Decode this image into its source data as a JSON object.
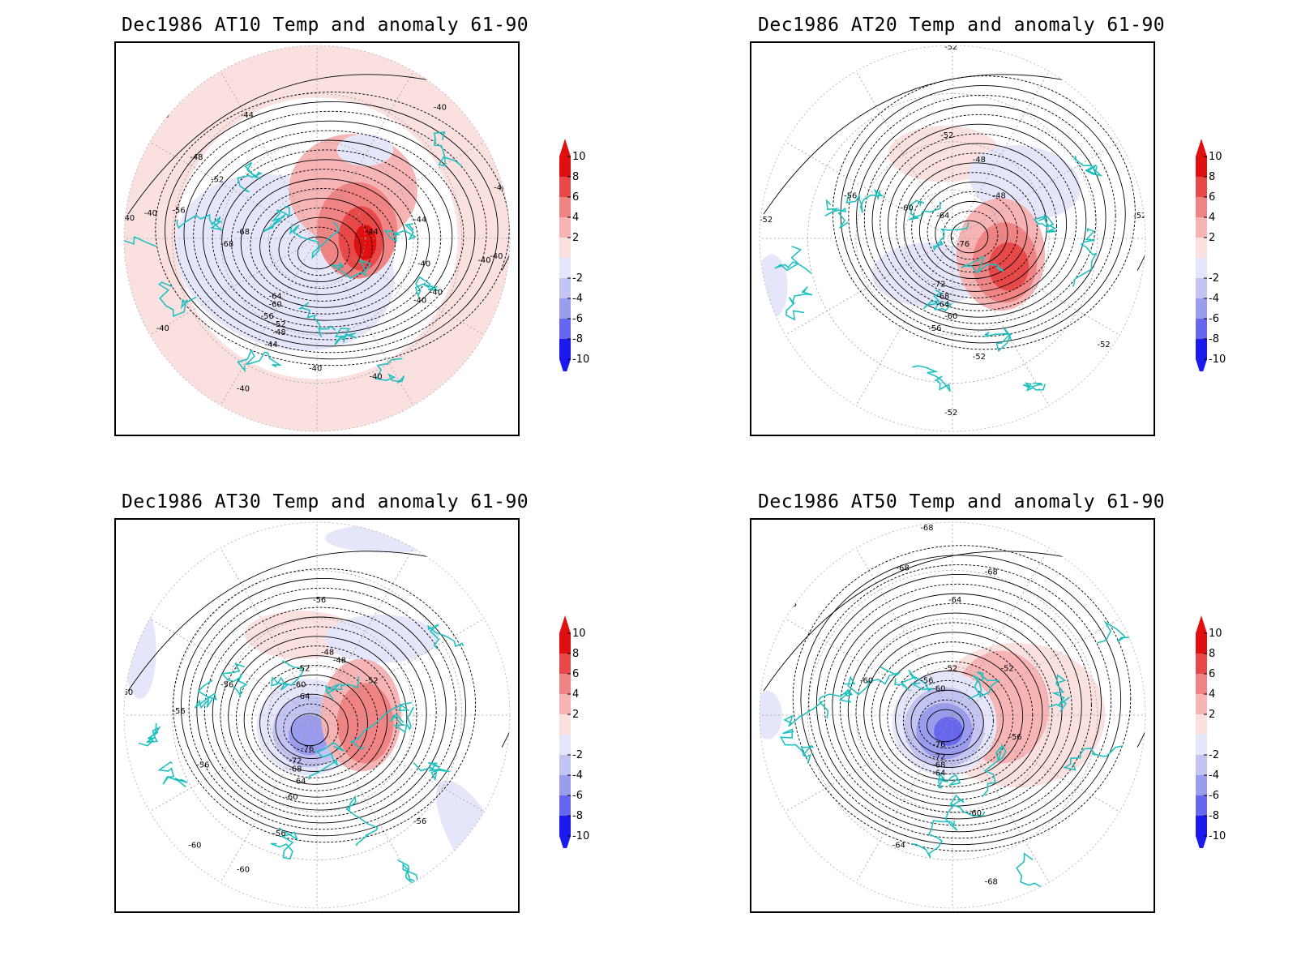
{
  "colors": {
    "coast": "#20c0c0",
    "contour": "#000000",
    "warm": [
      "#fbe0e0",
      "#f7b4b4",
      "#f08484",
      "#e84848",
      "#e01010"
    ],
    "cold": [
      "#e6e6fa",
      "#c4c4f2",
      "#9c9cee",
      "#6666ee",
      "#1a1aee"
    ]
  },
  "colorbar": {
    "levels": [
      "10",
      "8",
      "6",
      "4",
      "2",
      "-2",
      "-4",
      "-6",
      "-8",
      "-10"
    ]
  },
  "panels": [
    {
      "id": "at10",
      "title": "Dec1986 AT10 Temp and anomaly 61-90",
      "map_icon": "polar-stereographic-map",
      "contour_labels": [
        "-40",
        "-40",
        "-44",
        "-44",
        "-48",
        "-52",
        "-56",
        "-68",
        "-68",
        "-44",
        "-40",
        "-40",
        "-44",
        "-40",
        "-40",
        "-60",
        "-64",
        "-56",
        "-52",
        "-48",
        "-44",
        "-40",
        "-40",
        "-40",
        "-40",
        "-40",
        "-40",
        "-40"
      ]
    },
    {
      "id": "at20",
      "title": "Dec1986 AT20 Temp and anomaly 61-90",
      "map_icon": "polar-stereographic-map",
      "contour_labels": [
        "-52",
        "-52",
        "-52",
        "-48",
        "-48",
        "-56",
        "-60",
        "-64",
        "-76",
        "-72",
        "-68",
        "-64",
        "-60",
        "-56",
        "-52",
        "-52",
        "-52",
        "-52",
        "-52"
      ]
    },
    {
      "id": "at30",
      "title": "Dec1986 AT30 Temp and anomaly 61-90",
      "map_icon": "polar-stereographic-map",
      "contour_labels": [
        "-56",
        "-48",
        "-48",
        "-52",
        "-52",
        "-60",
        "-64",
        "-76",
        "-72",
        "-68",
        "-64",
        "-60",
        "-56",
        "-56",
        "-56",
        "-56",
        "-56",
        "-60",
        "-60",
        "-60",
        "-60"
      ]
    },
    {
      "id": "at50",
      "title": "Dec1986 AT50 Temp and anomaly 61-90",
      "map_icon": "polar-stereographic-map",
      "contour_labels": [
        "-68",
        "-68",
        "-68",
        "-64",
        "-68",
        "-52",
        "-52",
        "-56",
        "-60",
        "-60",
        "-76",
        "-72",
        "-68",
        "-64",
        "-56",
        "-60",
        "-64",
        "-68",
        "-68"
      ]
    }
  ]
}
